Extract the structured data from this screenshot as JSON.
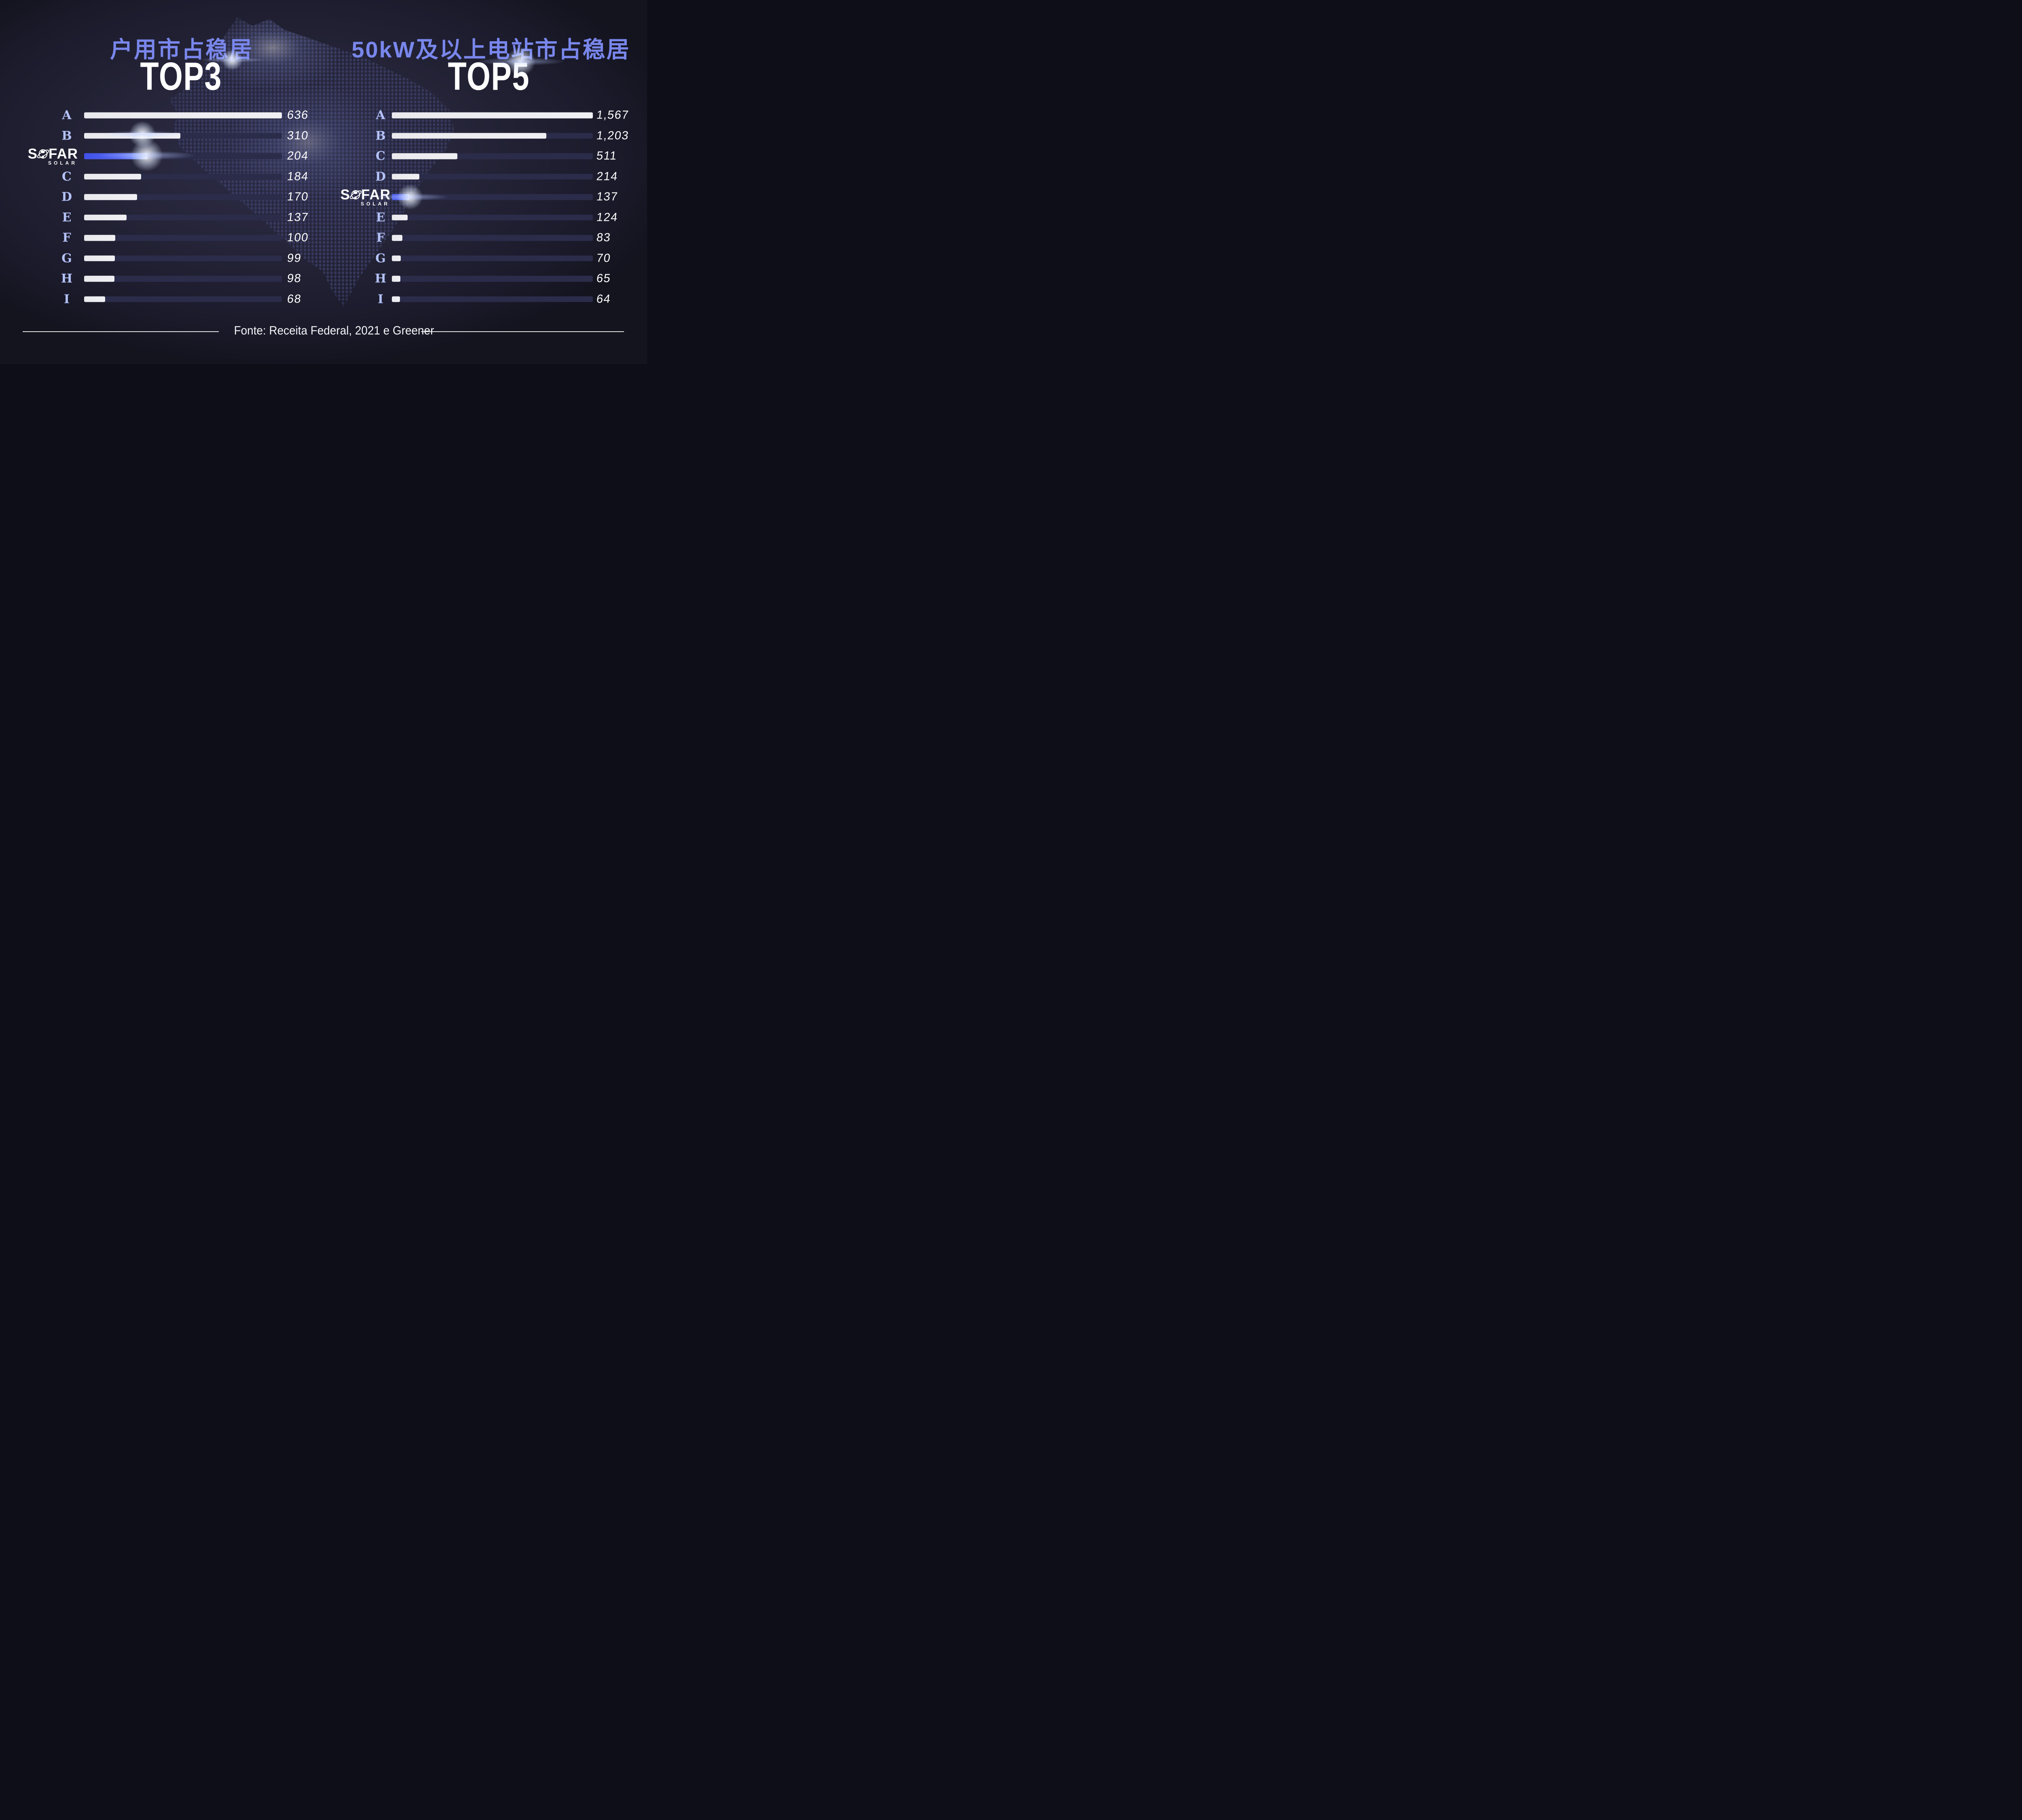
{
  "footer": {
    "source": "Fonte: Receita Federal, 2021 e Greener"
  },
  "logo": {
    "s": "S",
    "far": "FAR",
    "solar": "SOLAR",
    "globe_icon": "globe-orbit-icon"
  },
  "colors": {
    "background": "#242438",
    "title_blue": "#7987ec",
    "label_blue": "#b4c2f8",
    "bar_white": "#ececf0",
    "bar_track": "#2b2c4a",
    "accent_blue": "#5465f2",
    "map_dot": "#3b3e66",
    "text_white": "#ffffff"
  },
  "charts": [
    {
      "id": "household",
      "title": "户用市占稳居",
      "badge": "TOP3",
      "max": 636,
      "rows": [
        {
          "label": "A",
          "value": 636,
          "display": "636",
          "style": "white",
          "logo": false
        },
        {
          "label": "B",
          "value": 310,
          "display": "310",
          "style": "white",
          "logo": false
        },
        {
          "label": "",
          "value": 204,
          "display": "204",
          "style": "blue",
          "logo": true
        },
        {
          "label": "C",
          "value": 184,
          "display": "184",
          "style": "white",
          "logo": false
        },
        {
          "label": "D",
          "value": 170,
          "display": "170",
          "style": "white",
          "logo": false
        },
        {
          "label": "E",
          "value": 137,
          "display": "137",
          "style": "white",
          "logo": false
        },
        {
          "label": "F",
          "value": 100,
          "display": "100",
          "style": "white",
          "logo": false
        },
        {
          "label": "G",
          "value": 99,
          "display": "99",
          "style": "white",
          "logo": false
        },
        {
          "label": "H",
          "value": 98,
          "display": "98",
          "style": "white",
          "logo": false
        },
        {
          "label": "I",
          "value": 68,
          "display": "68",
          "style": "white",
          "logo": false
        }
      ]
    },
    {
      "id": "stations-50kw",
      "title": "50kW及以上电站市占稳居",
      "badge": "TOP5",
      "max": 1567,
      "rows": [
        {
          "label": "A",
          "value": 1567,
          "display": "1,567",
          "style": "white",
          "logo": false
        },
        {
          "label": "B",
          "value": 1203,
          "display": "1,203",
          "style": "white",
          "logo": false
        },
        {
          "label": "C",
          "value": 511,
          "display": "511",
          "style": "white",
          "logo": false
        },
        {
          "label": "D",
          "value": 214,
          "display": "214",
          "style": "white",
          "logo": false
        },
        {
          "label": "",
          "value": 137,
          "display": "137",
          "style": "blue",
          "logo": true
        },
        {
          "label": "E",
          "value": 124,
          "display": "124",
          "style": "white",
          "logo": false
        },
        {
          "label": "F",
          "value": 83,
          "display": "83",
          "style": "white",
          "logo": false
        },
        {
          "label": "G",
          "value": 70,
          "display": "70",
          "style": "white",
          "logo": false
        },
        {
          "label": "H",
          "value": 65,
          "display": "65",
          "style": "white",
          "logo": false
        },
        {
          "label": "I",
          "value": 64,
          "display": "64",
          "style": "white",
          "logo": false
        }
      ]
    }
  ],
  "chart_data": [
    {
      "type": "bar",
      "orientation": "horizontal",
      "title": "户用市占稳居 TOP3",
      "categories": [
        "A",
        "B",
        "SOFAR SOLAR",
        "C",
        "D",
        "E",
        "F",
        "G",
        "H",
        "I"
      ],
      "values": [
        636,
        310,
        204,
        184,
        170,
        137,
        100,
        99,
        98,
        68
      ],
      "highlight_index": 2,
      "highlight_color": "#5465f2",
      "bar_color": "#ececf0",
      "xlim": [
        0,
        636
      ],
      "grid": false,
      "value_labels": "right of bars"
    },
    {
      "type": "bar",
      "orientation": "horizontal",
      "title": "50kW及以上电站市占稳居 TOP5",
      "categories": [
        "A",
        "B",
        "C",
        "D",
        "SOFAR SOLAR",
        "E",
        "F",
        "G",
        "H",
        "I"
      ],
      "values": [
        1567,
        1203,
        511,
        214,
        137,
        124,
        83,
        70,
        65,
        64
      ],
      "highlight_index": 4,
      "highlight_color": "#5465f2",
      "bar_color": "#ececf0",
      "xlim": [
        0,
        1567
      ],
      "grid": false,
      "value_labels": "right of bars"
    }
  ]
}
